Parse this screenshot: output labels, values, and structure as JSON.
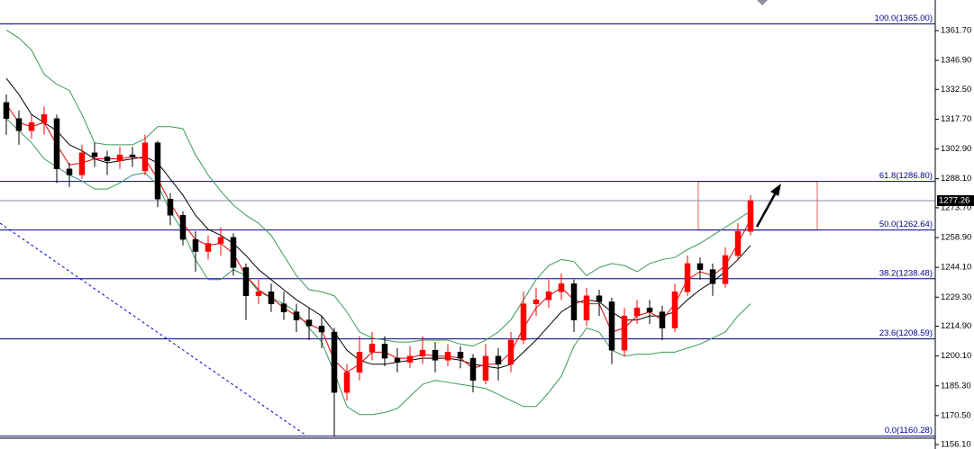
{
  "chart_data": {
    "type": "candlestick",
    "categories": [
      null,
      null,
      null,
      null,
      null,
      null,
      null,
      null,
      null,
      null,
      null,
      null,
      null,
      null,
      null,
      null,
      null,
      null,
      null,
      null,
      null,
      null,
      null,
      null,
      null,
      null,
      null,
      null,
      null,
      null,
      null,
      null,
      null,
      null,
      null,
      null,
      null,
      null,
      null,
      null,
      null,
      null,
      null,
      null,
      null,
      null,
      null,
      null,
      null,
      null,
      null,
      null,
      null,
      null,
      null,
      null,
      null,
      null,
      null,
      null
    ],
    "open": [
      1326,
      1318,
      1312,
      1316,
      1318,
      1293,
      1290,
      1301,
      1299,
      1297,
      1300,
      1292,
      1306,
      1278,
      1270,
      1258,
      1252,
      1256,
      1259,
      1244,
      1230,
      1232,
      1226,
      1222,
      1218,
      1215,
      1212,
      1182,
      1192,
      1202,
      1206,
      1199,
      1197,
      1200,
      1203,
      1198,
      1202,
      1199,
      1188,
      1200,
      1196,
      1208,
      1226,
      1228,
      1232,
      1236,
      1218,
      1230,
      1227,
      1203,
      1220,
      1224,
      1222,
      1214,
      1232,
      1246,
      1243,
      1236,
      1250,
      1262
    ],
    "high": [
      1330,
      1322,
      1320,
      1324,
      1320,
      1296,
      1305,
      1306,
      1302,
      1304,
      1304,
      1310,
      1307,
      1281,
      1272,
      1262,
      1260,
      1264,
      1261,
      1246,
      1238,
      1236,
      1232,
      1226,
      1224,
      1220,
      1214,
      1196,
      1210,
      1212,
      1210,
      1204,
      1205,
      1210,
      1207,
      1206,
      1205,
      1201,
      1206,
      1204,
      1212,
      1232,
      1234,
      1238,
      1241,
      1238,
      1234,
      1233,
      1229,
      1224,
      1228,
      1228,
      1225,
      1236,
      1250,
      1249,
      1246,
      1254,
      1266,
      1280
    ],
    "low": [
      1310,
      1305,
      1308,
      1310,
      1286,
      1284,
      1288,
      1294,
      1290,
      1293,
      1294,
      1290,
      1274,
      1265,
      1255,
      1242,
      1248,
      1250,
      1240,
      1218,
      1226,
      1222,
      1218,
      1212,
      1208,
      1204,
      1160,
      1178,
      1188,
      1198,
      1195,
      1192,
      1194,
      1196,
      1192,
      1195,
      1194,
      1182,
      1186,
      1188,
      1192,
      1206,
      1220,
      1224,
      1228,
      1212,
      1215,
      1220,
      1196,
      1200,
      1216,
      1216,
      1208,
      1212,
      1230,
      1238,
      1230,
      1234,
      1248,
      1260
    ],
    "close": [
      1318,
      1312,
      1316,
      1320,
      1293,
      1290,
      1301,
      1299,
      1297,
      1300,
      1299,
      1306,
      1278,
      1270,
      1258,
      1252,
      1256,
      1259,
      1244,
      1230,
      1232,
      1226,
      1222,
      1218,
      1215,
      1212,
      1182,
      1192,
      1202,
      1206,
      1199,
      1197,
      1200,
      1203,
      1198,
      1202,
      1199,
      1188,
      1200,
      1196,
      1208,
      1226,
      1228,
      1232,
      1236,
      1218,
      1230,
      1227,
      1203,
      1220,
      1224,
      1222,
      1214,
      1232,
      1246,
      1243,
      1236,
      1250,
      1262,
      1277.26
    ],
    "up_color": "#ff0000",
    "down_color": "#000000",
    "lines": [
      {
        "color": "#3a9a5a",
        "values": [
          1362,
          1358,
          1352,
          1340,
          1335,
          1332,
          1320,
          1306,
          1305,
          1305,
          1305,
          1308,
          1314,
          1314,
          1313,
          1300,
          1290,
          1282,
          1275,
          1270,
          1266,
          1260,
          1250,
          1240,
          1233,
          1232,
          1230,
          1222,
          1212,
          1209,
          1208,
          1207,
          1207,
          1208,
          1208,
          1208,
          1206,
          1205,
          1208,
          1212,
          1218,
          1228,
          1238,
          1245,
          1248,
          1247,
          1240,
          1244,
          1246,
          1245,
          1242,
          1246,
          1248,
          1249,
          1253,
          1256,
          1260,
          1264,
          1268,
          1272
        ]
      },
      {
        "color": "#3a9a5a",
        "values": [
          1318,
          1312,
          1306,
          1298,
          1294,
          1290,
          1287,
          1283,
          1283,
          1286,
          1290,
          1291,
          1285,
          1272,
          1262,
          1248,
          1238,
          1238,
          1243,
          1240,
          1232,
          1229,
          1226,
          1222,
          1214,
          1207,
          1192,
          1175,
          1171,
          1171,
          1172,
          1174,
          1180,
          1186,
          1188,
          1187,
          1186,
          1185,
          1184,
          1181,
          1178,
          1175,
          1175,
          1182,
          1190,
          1205,
          1214,
          1212,
          1203,
          1200,
          1201,
          1201,
          1202,
          1202,
          1204,
          1206,
          1209,
          1212,
          1220,
          1226
        ]
      },
      {
        "color": "#000000",
        "values": [
          1338,
          1330,
          1320,
          1316,
          1312,
          1305,
          1302,
          1298,
          1296,
          1297,
          1298,
          1299,
          1296,
          1288,
          1280,
          1270,
          1263,
          1260,
          1256,
          1250,
          1243,
          1238,
          1233,
          1228,
          1224,
          1220,
          1212,
          1203,
          1198,
          1196,
          1196,
          1197,
          1198,
          1199,
          1199,
          1199,
          1198,
          1196,
          1195,
          1194,
          1196,
          1202,
          1208,
          1215,
          1222,
          1226,
          1228,
          1227,
          1222,
          1218,
          1218,
          1220,
          1220,
          1222,
          1228,
          1233,
          1237,
          1242,
          1248,
          1255
        ]
      },
      {
        "color": "#e00000",
        "values": [
          1325,
          1316,
          1314,
          1316,
          1305,
          1295,
          1296,
          1298,
          1298,
          1298,
          1299,
          1298,
          1288,
          1276,
          1266,
          1258,
          1255,
          1256,
          1251,
          1240,
          1233,
          1229,
          1224,
          1220,
          1216,
          1213,
          1198,
          1192,
          1196,
          1202,
          1202,
          1199,
          1199,
          1201,
          1200,
          1200,
          1199,
          1194,
          1196,
          1196,
          1202,
          1214,
          1224,
          1230,
          1234,
          1228,
          1226,
          1226,
          1212,
          1214,
          1220,
          1222,
          1218,
          1226,
          1238,
          1242,
          1240,
          1245,
          1256,
          1268
        ]
      }
    ],
    "levels": [
      {
        "value": 1365.0,
        "label": "100.0(1365.00)"
      },
      {
        "value": 1286.8,
        "label": "61.8(1286.80)"
      },
      {
        "value": 1262.64,
        "label": "50.0(1262.64)"
      },
      {
        "value": 1238.48,
        "label": "38.2(1238.48)"
      },
      {
        "value": 1208.59,
        "label": "23.6(1208.59)"
      },
      {
        "value": 1160.28,
        "label": "0.0(1160.28)"
      }
    ],
    "level_color": "#00008b",
    "last_price": 1277.26,
    "ylim": [
      1153.9,
      1376.9
    ],
    "yticks": [
      {
        "value": 1361.7,
        "label": "1361.70"
      },
      {
        "value": 1346.9,
        "label": "1346.90"
      },
      {
        "value": 1332.5,
        "label": "1332.50"
      },
      {
        "value": 1317.7,
        "label": "1317.70"
      },
      {
        "value": 1302.9,
        "label": "1302.90"
      },
      {
        "value": 1288.1,
        "label": "1288.10"
      },
      {
        "value": 1273.7,
        "label": "1273.70"
      },
      {
        "value": 1258.9,
        "label": "1258.90"
      },
      {
        "value": 1244.1,
        "label": "1244.10"
      },
      {
        "value": 1229.3,
        "label": "1229.30"
      },
      {
        "value": 1214.9,
        "label": "1214.90"
      },
      {
        "value": 1200.1,
        "label": "1200.10"
      },
      {
        "value": 1185.3,
        "label": "1185.30"
      },
      {
        "value": 1170.5,
        "label": "1170.50"
      },
      {
        "value": 1156.1,
        "label": "1156.10"
      }
    ]
  }
}
